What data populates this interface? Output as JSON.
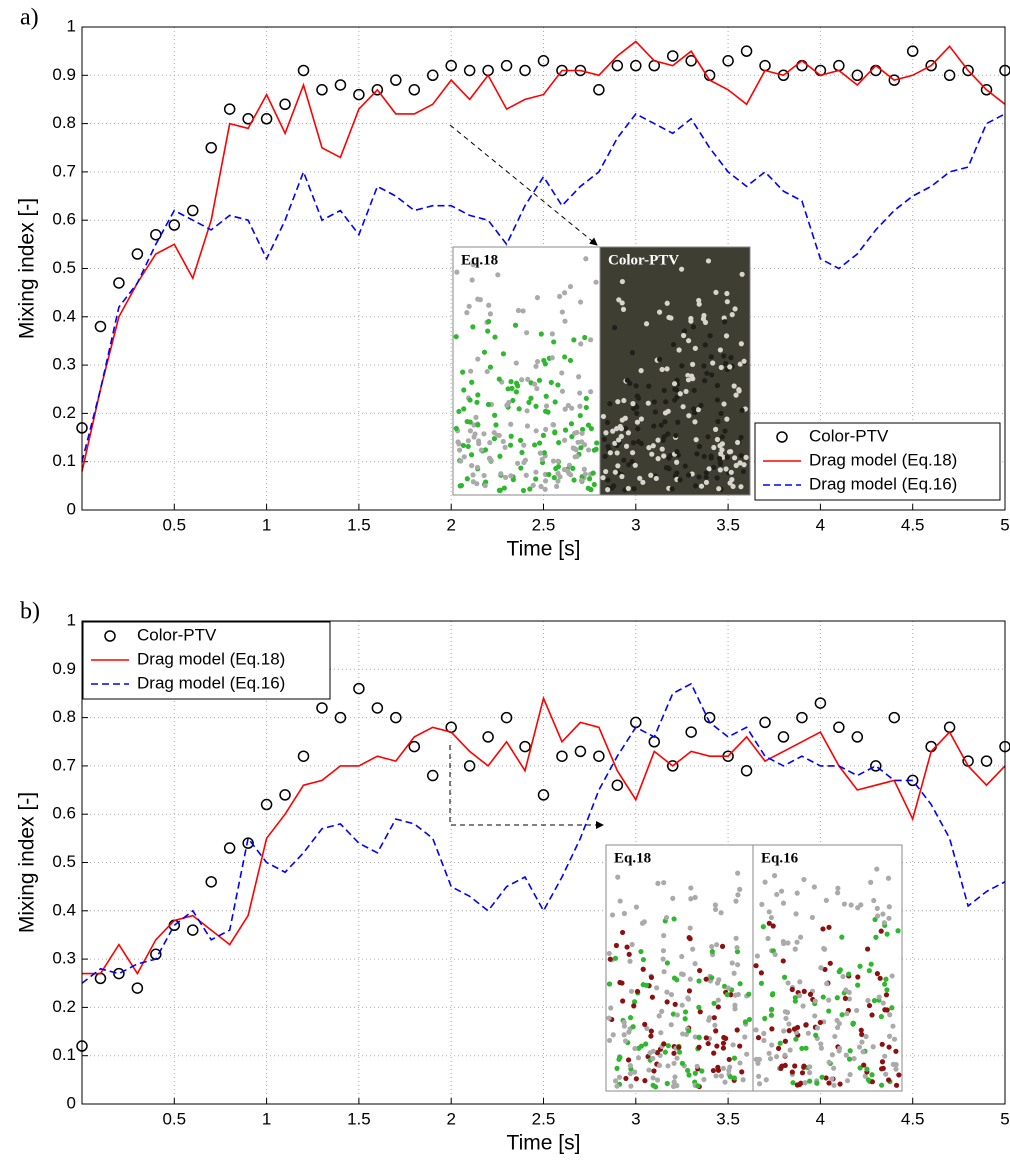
{
  "chart_data": [
    {
      "type": "line",
      "panel_label": "a)",
      "xlabel": "Time [s]",
      "ylabel": "Mixing index [-]",
      "xlim": [
        0,
        5
      ],
      "ylim": [
        0,
        1
      ],
      "xticks": [
        0.5,
        1,
        1.5,
        2,
        2.5,
        3,
        3.5,
        4,
        4.5,
        5
      ],
      "yticks": [
        0,
        0.1,
        0.2,
        0.3,
        0.4,
        0.5,
        0.6,
        0.7,
        0.8,
        0.9,
        1
      ],
      "grid": true,
      "legend": "lower right",
      "annotations": [
        "Eq.18",
        "Color-PTV"
      ],
      "x": [
        0,
        0.1,
        0.2,
        0.3,
        0.4,
        0.5,
        0.6,
        0.7,
        0.8,
        0.9,
        1,
        1.1,
        1.2,
        1.3,
        1.4,
        1.5,
        1.6,
        1.7,
        1.8,
        1.9,
        2,
        2.1,
        2.2,
        2.3,
        2.4,
        2.5,
        2.6,
        2.7,
        2.8,
        2.9,
        3,
        3.1,
        3.2,
        3.3,
        3.4,
        3.5,
        3.6,
        3.7,
        3.8,
        3.9,
        4,
        4.1,
        4.2,
        4.3,
        4.4,
        4.5,
        4.6,
        4.7,
        4.8,
        4.9,
        5
      ],
      "series": [
        {
          "name": "Color-PTV",
          "color": "#000000",
          "style": "marker",
          "values": [
            0.17,
            0.38,
            0.47,
            0.53,
            0.57,
            0.59,
            0.62,
            0.75,
            0.83,
            0.81,
            0.81,
            0.84,
            0.91,
            0.87,
            0.88,
            0.86,
            0.87,
            0.89,
            0.87,
            0.9,
            0.92,
            0.91,
            0.91,
            0.92,
            0.91,
            0.93,
            0.91,
            0.91,
            0.87,
            0.92,
            0.92,
            0.92,
            0.94,
            0.93,
            0.9,
            0.93,
            0.95,
            0.92,
            0.9,
            0.92,
            0.91,
            0.92,
            0.9,
            0.91,
            0.89,
            0.95,
            0.92,
            0.9,
            0.91,
            0.87,
            0.91
          ]
        },
        {
          "name": "Drag model (Eq.18)",
          "color": "#ff0000",
          "style": "solid",
          "values": [
            0.08,
            0.25,
            0.4,
            0.47,
            0.53,
            0.55,
            0.48,
            0.6,
            0.8,
            0.79,
            0.86,
            0.78,
            0.88,
            0.75,
            0.73,
            0.83,
            0.87,
            0.82,
            0.82,
            0.84,
            0.89,
            0.85,
            0.9,
            0.83,
            0.85,
            0.86,
            0.91,
            0.91,
            0.9,
            0.94,
            0.97,
            0.93,
            0.92,
            0.95,
            0.89,
            0.87,
            0.84,
            0.91,
            0.9,
            0.93,
            0.9,
            0.91,
            0.88,
            0.92,
            0.89,
            0.9,
            0.92,
            0.96,
            0.91,
            0.87,
            0.84
          ]
        },
        {
          "name": "Drag model (Eq.16)",
          "color": "#0000ff",
          "style": "dashed",
          "values": [
            0.1,
            0.25,
            0.42,
            0.47,
            0.55,
            0.62,
            0.6,
            0.58,
            0.61,
            0.6,
            0.52,
            0.6,
            0.7,
            0.6,
            0.62,
            0.57,
            0.67,
            0.65,
            0.62,
            0.63,
            0.63,
            0.61,
            0.6,
            0.55,
            0.63,
            0.69,
            0.63,
            0.67,
            0.7,
            0.77,
            0.82,
            0.8,
            0.78,
            0.81,
            0.75,
            0.7,
            0.67,
            0.7,
            0.66,
            0.64,
            0.52,
            0.5,
            0.53,
            0.58,
            0.62,
            0.65,
            0.67,
            0.7,
            0.71,
            0.8,
            0.82
          ]
        }
      ]
    },
    {
      "type": "line",
      "panel_label": "b)",
      "xlabel": "Time [s]",
      "ylabel": "Mixing index [-]",
      "xlim": [
        0,
        5
      ],
      "ylim": [
        0,
        1
      ],
      "xticks": [
        0.5,
        1,
        1.5,
        2,
        2.5,
        3,
        3.5,
        4,
        4.5,
        5
      ],
      "yticks": [
        0,
        0.1,
        0.2,
        0.3,
        0.4,
        0.5,
        0.6,
        0.7,
        0.8,
        0.9,
        1
      ],
      "grid": true,
      "legend": "upper left",
      "annotations": [
        "Eq.18",
        "Eq.16"
      ],
      "x": [
        0,
        0.1,
        0.2,
        0.3,
        0.4,
        0.5,
        0.6,
        0.7,
        0.8,
        0.9,
        1,
        1.1,
        1.2,
        1.3,
        1.4,
        1.5,
        1.6,
        1.7,
        1.8,
        1.9,
        2,
        2.1,
        2.2,
        2.3,
        2.4,
        2.5,
        2.6,
        2.7,
        2.8,
        2.9,
        3,
        3.1,
        3.2,
        3.3,
        3.4,
        3.5,
        3.6,
        3.7,
        3.8,
        3.9,
        4,
        4.1,
        4.2,
        4.3,
        4.4,
        4.5,
        4.6,
        4.7,
        4.8,
        4.9,
        5
      ],
      "series": [
        {
          "name": "Color-PTV",
          "color": "#000000",
          "style": "marker",
          "values": [
            0.12,
            0.26,
            0.27,
            0.24,
            0.31,
            0.37,
            0.36,
            0.46,
            0.53,
            0.54,
            0.62,
            0.64,
            0.72,
            0.82,
            0.8,
            0.86,
            0.82,
            0.8,
            0.74,
            0.68,
            0.78,
            0.7,
            0.76,
            0.8,
            0.74,
            0.64,
            0.72,
            0.73,
            0.72,
            0.66,
            0.79,
            0.75,
            0.7,
            0.77,
            0.8,
            0.72,
            0.69,
            0.79,
            0.76,
            0.8,
            0.83,
            0.78,
            0.76,
            0.7,
            0.8,
            0.67,
            0.74,
            0.78,
            0.71,
            0.71,
            0.74
          ]
        },
        {
          "name": "Drag model (Eq.18)",
          "color": "#ff0000",
          "style": "solid",
          "values": [
            0.27,
            0.27,
            0.33,
            0.27,
            0.34,
            0.38,
            0.39,
            0.36,
            0.33,
            0.39,
            0.55,
            0.6,
            0.66,
            0.67,
            0.7,
            0.7,
            0.72,
            0.71,
            0.76,
            0.78,
            0.77,
            0.73,
            0.7,
            0.75,
            0.69,
            0.84,
            0.75,
            0.79,
            0.78,
            0.69,
            0.63,
            0.73,
            0.7,
            0.73,
            0.72,
            0.72,
            0.76,
            0.71,
            0.73,
            0.75,
            0.77,
            0.7,
            0.65,
            0.66,
            0.67,
            0.59,
            0.73,
            0.77,
            0.7,
            0.66,
            0.7
          ]
        },
        {
          "name": "Drag model (Eq.16)",
          "color": "#0000ff",
          "style": "dashed",
          "values": [
            0.25,
            0.28,
            0.27,
            0.29,
            0.3,
            0.37,
            0.4,
            0.34,
            0.36,
            0.55,
            0.5,
            0.48,
            0.52,
            0.57,
            0.58,
            0.54,
            0.52,
            0.59,
            0.58,
            0.55,
            0.45,
            0.43,
            0.4,
            0.45,
            0.47,
            0.4,
            0.47,
            0.55,
            0.65,
            0.72,
            0.78,
            0.76,
            0.85,
            0.87,
            0.79,
            0.76,
            0.78,
            0.72,
            0.7,
            0.72,
            0.7,
            0.7,
            0.68,
            0.7,
            0.67,
            0.67,
            0.62,
            0.55,
            0.41,
            0.44,
            0.46
          ]
        }
      ]
    }
  ]
}
